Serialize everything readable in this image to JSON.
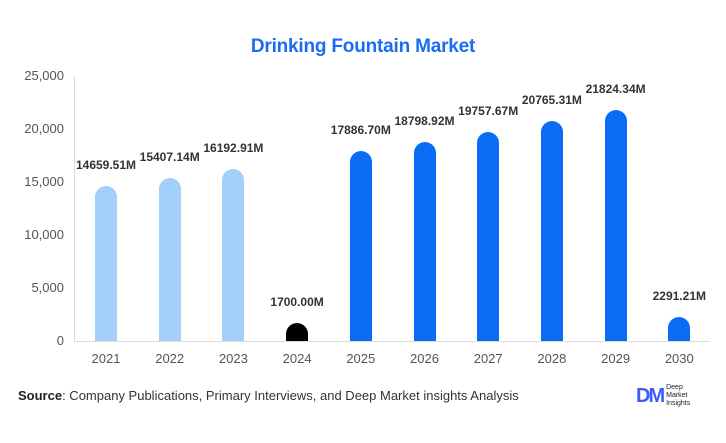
{
  "title": "Drinking Fountain Market",
  "source": {
    "label": "Source",
    "text": ": Company Publications, Primary Interviews, and Deep Market insights Analysis"
  },
  "logo": {
    "mark": "DM",
    "line1": "Deep",
    "line2": "Market",
    "line3": "Insights"
  },
  "colors": {
    "historical": "#a3cffb",
    "current": "#000000",
    "forecast": "#0a6cf5",
    "title": "#1a6cf0"
  },
  "chart_data": {
    "type": "bar",
    "title": "Drinking Fountain Market",
    "xlabel": "",
    "ylabel": "",
    "ylim": [
      0,
      25000
    ],
    "yticks": [
      "0",
      "5,000",
      "10,000",
      "15,000",
      "20,000",
      "25,000"
    ],
    "categories": [
      "2021",
      "2022",
      "2023",
      "2024",
      "2025",
      "2026",
      "2027",
      "2028",
      "2029",
      "2030"
    ],
    "values": [
      14659.51,
      15407.14,
      16192.91,
      1700.0,
      17886.7,
      18798.92,
      19757.67,
      20765.31,
      21824.34,
      2291.21
    ],
    "labels": [
      "14659.51M",
      "15407.14M",
      "16192.91M",
      "1700.00M",
      "17886.70M",
      "18798.92M",
      "19757.67M",
      "20765.31M",
      "21824.34M",
      "2291.21M"
    ],
    "bar_colors": [
      "#a3cffb",
      "#a3cffb",
      "#a3cffb",
      "#000000",
      "#0a6cf5",
      "#0a6cf5",
      "#0a6cf5",
      "#0a6cf5",
      "#0a6cf5",
      "#0a6cf5"
    ],
    "grid": false,
    "legend": null
  }
}
